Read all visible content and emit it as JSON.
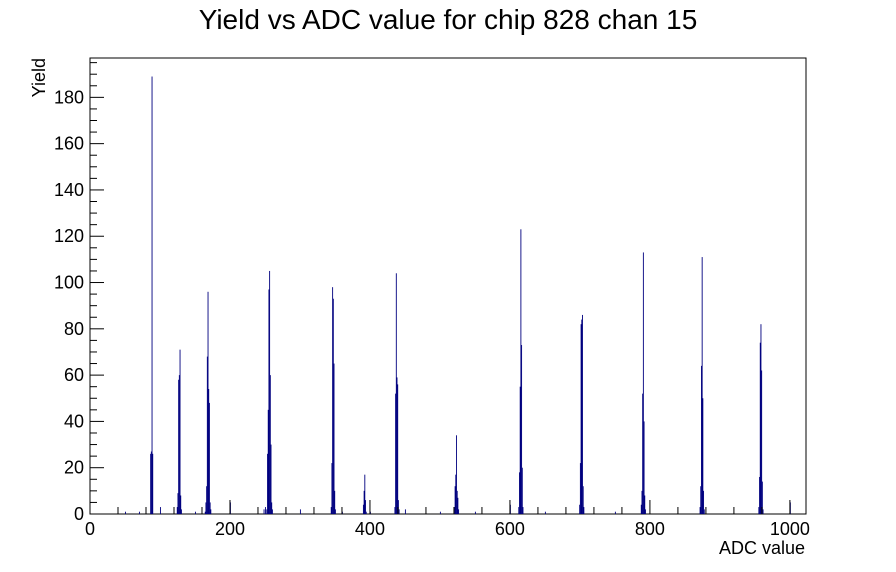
{
  "chart_data": {
    "type": "bar",
    "title": "Yield vs ADC value for chip 828 chan 15",
    "xlabel": "ADC value",
    "ylabel": "Yield",
    "xlim": [
      0,
      1023
    ],
    "ylim": [
      0,
      197
    ],
    "x_ticks": [
      0,
      200,
      400,
      600,
      800,
      1000
    ],
    "y_ticks": [
      0,
      20,
      40,
      60,
      80,
      100,
      120,
      140,
      160,
      180
    ],
    "grid": false,
    "legend": "none",
    "bin_width": 1,
    "line_color": "#00007f",
    "bins": [
      {
        "x": 50,
        "y": 1
      },
      {
        "x": 70,
        "y": 1
      },
      {
        "x": 86,
        "y": 26
      },
      {
        "x": 87,
        "y": 27
      },
      {
        "x": 88,
        "y": 189
      },
      {
        "x": 89,
        "y": 26
      },
      {
        "x": 100,
        "y": 3
      },
      {
        "x": 124,
        "y": 3
      },
      {
        "x": 125,
        "y": 9
      },
      {
        "x": 126,
        "y": 58
      },
      {
        "x": 127,
        "y": 60
      },
      {
        "x": 128,
        "y": 71
      },
      {
        "x": 129,
        "y": 8
      },
      {
        "x": 130,
        "y": 2
      },
      {
        "x": 150,
        "y": 1
      },
      {
        "x": 164,
        "y": 1
      },
      {
        "x": 165,
        "y": 5
      },
      {
        "x": 166,
        "y": 12
      },
      {
        "x": 167,
        "y": 68
      },
      {
        "x": 168,
        "y": 96
      },
      {
        "x": 169,
        "y": 54
      },
      {
        "x": 170,
        "y": 48
      },
      {
        "x": 171,
        "y": 5
      },
      {
        "x": 172,
        "y": 2
      },
      {
        "x": 200,
        "y": 5
      },
      {
        "x": 248,
        "y": 2
      },
      {
        "x": 250,
        "y": 3
      },
      {
        "x": 252,
        "y": 2
      },
      {
        "x": 253,
        "y": 26
      },
      {
        "x": 254,
        "y": 45
      },
      {
        "x": 255,
        "y": 97
      },
      {
        "x": 256,
        "y": 105
      },
      {
        "x": 257,
        "y": 60
      },
      {
        "x": 258,
        "y": 30
      },
      {
        "x": 259,
        "y": 5
      },
      {
        "x": 260,
        "y": 2
      },
      {
        "x": 300,
        "y": 2
      },
      {
        "x": 344,
        "y": 3
      },
      {
        "x": 345,
        "y": 22
      },
      {
        "x": 346,
        "y": 98
      },
      {
        "x": 347,
        "y": 93
      },
      {
        "x": 348,
        "y": 65
      },
      {
        "x": 349,
        "y": 10
      },
      {
        "x": 350,
        "y": 2
      },
      {
        "x": 360,
        "y": 1
      },
      {
        "x": 390,
        "y": 4
      },
      {
        "x": 391,
        "y": 10
      },
      {
        "x": 392,
        "y": 17
      },
      {
        "x": 393,
        "y": 6
      },
      {
        "x": 394,
        "y": 1
      },
      {
        "x": 400,
        "y": 1
      },
      {
        "x": 435,
        "y": 3
      },
      {
        "x": 436,
        "y": 52
      },
      {
        "x": 437,
        "y": 104
      },
      {
        "x": 438,
        "y": 59
      },
      {
        "x": 439,
        "y": 56
      },
      {
        "x": 440,
        "y": 6
      },
      {
        "x": 441,
        "y": 2
      },
      {
        "x": 450,
        "y": 2
      },
      {
        "x": 500,
        "y": 1
      },
      {
        "x": 520,
        "y": 3
      },
      {
        "x": 521,
        "y": 12
      },
      {
        "x": 522,
        "y": 17
      },
      {
        "x": 523,
        "y": 34
      },
      {
        "x": 524,
        "y": 10
      },
      {
        "x": 525,
        "y": 7
      },
      {
        "x": 526,
        "y": 2
      },
      {
        "x": 550,
        "y": 1
      },
      {
        "x": 600,
        "y": 4
      },
      {
        "x": 612,
        "y": 3
      },
      {
        "x": 613,
        "y": 18
      },
      {
        "x": 614,
        "y": 55
      },
      {
        "x": 615,
        "y": 123
      },
      {
        "x": 616,
        "y": 73
      },
      {
        "x": 617,
        "y": 20
      },
      {
        "x": 618,
        "y": 3
      },
      {
        "x": 650,
        "y": 1
      },
      {
        "x": 699,
        "y": 4
      },
      {
        "x": 700,
        "y": 22
      },
      {
        "x": 701,
        "y": 82
      },
      {
        "x": 702,
        "y": 84
      },
      {
        "x": 703,
        "y": 86
      },
      {
        "x": 704,
        "y": 12
      },
      {
        "x": 705,
        "y": 3
      },
      {
        "x": 750,
        "y": 1
      },
      {
        "x": 787,
        "y": 4
      },
      {
        "x": 788,
        "y": 10
      },
      {
        "x": 789,
        "y": 52
      },
      {
        "x": 790,
        "y": 113
      },
      {
        "x": 791,
        "y": 40
      },
      {
        "x": 792,
        "y": 8
      },
      {
        "x": 793,
        "y": 2
      },
      {
        "x": 871,
        "y": 3
      },
      {
        "x": 872,
        "y": 12
      },
      {
        "x": 873,
        "y": 64
      },
      {
        "x": 874,
        "y": 111
      },
      {
        "x": 875,
        "y": 50
      },
      {
        "x": 876,
        "y": 10
      },
      {
        "x": 877,
        "y": 2
      },
      {
        "x": 955,
        "y": 3
      },
      {
        "x": 956,
        "y": 16
      },
      {
        "x": 957,
        "y": 74
      },
      {
        "x": 958,
        "y": 82
      },
      {
        "x": 959,
        "y": 62
      },
      {
        "x": 960,
        "y": 14
      },
      {
        "x": 961,
        "y": 2
      },
      {
        "x": 1000,
        "y": 5
      }
    ]
  }
}
